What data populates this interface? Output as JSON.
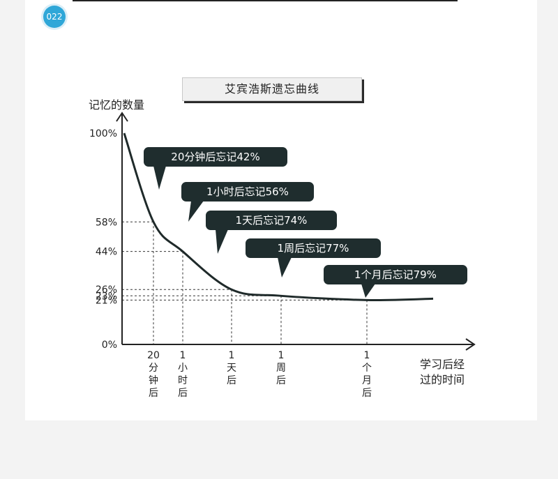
{
  "badge": "022",
  "chart_data": {
    "type": "line",
    "title": "艾宾浩斯遗忘曲线",
    "ylabel": "记忆的数量",
    "xlabel_lines": [
      "学习后经",
      "过的时间"
    ],
    "ylim": [
      0,
      100
    ],
    "y_ticks": [
      "100%",
      "58%",
      "44%",
      "26%",
      "23%",
      "21%",
      "0%"
    ],
    "y_tick_values": [
      100,
      58,
      44,
      26,
      23,
      21,
      0
    ],
    "x_categories": [
      {
        "lines": [
          "20",
          "分",
          "钟",
          "后"
        ]
      },
      {
        "lines": [
          "1",
          "小",
          "时",
          "后"
        ]
      },
      {
        "lines": [
          "1",
          "天",
          "后"
        ]
      },
      {
        "lines": [
          "1",
          "周",
          "后"
        ]
      },
      {
        "lines": [
          "1",
          "个",
          "月",
          "后"
        ]
      }
    ],
    "series": [
      {
        "values": [
          58,
          44,
          26,
          23,
          21
        ]
      }
    ],
    "callouts": [
      "20分钟后忘记42%",
      "1小时后忘记56%",
      "1天后忘记74%",
      "1周后忘记77%",
      "1个月后忘记79%"
    ]
  }
}
